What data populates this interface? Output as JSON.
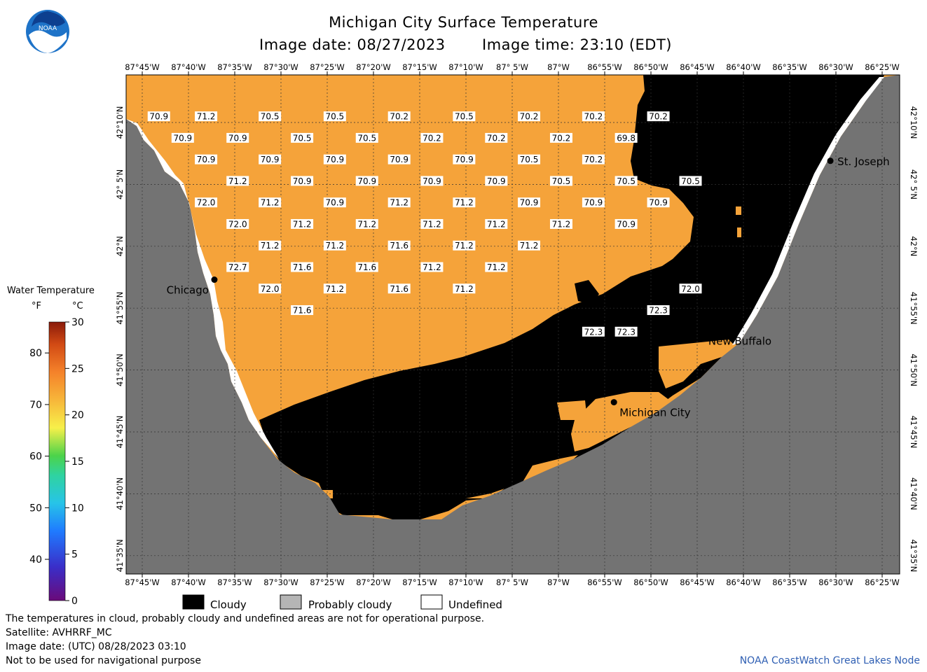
{
  "header": {
    "title": "Michigan City Surface Temperature",
    "image_date": "Image date: 08/27/2023",
    "image_time": "Image time: 23:10 (EDT)",
    "logo_text": "NOAA"
  },
  "axes": {
    "lon_labels": [
      "87°45'W",
      "87°40'W",
      "87°35'W",
      "87°30'W",
      "87°25'W",
      "87°20'W",
      "87°15'W",
      "87°10'W",
      "87° 5'W",
      "87°W",
      "86°55'W",
      "86°50'W",
      "86°45'W",
      "86°40'W",
      "86°35'W",
      "86°30'W",
      "86°25'W"
    ],
    "lat_labels": [
      "42°10'N",
      "42° 5'N",
      "42°N",
      "41°55'N",
      "41°50'N",
      "41°45'N",
      "41°40'N",
      "41°35'N"
    ]
  },
  "temperatures": [
    {
      "v": "70.9",
      "lon": -87.72,
      "lat": 42.175
    },
    {
      "v": "71.2",
      "lon": -87.635,
      "lat": 42.175
    },
    {
      "v": "70.5",
      "lon": -87.52,
      "lat": 42.175
    },
    {
      "v": "70.5",
      "lon": -87.403,
      "lat": 42.175
    },
    {
      "v": "70.2",
      "lon": -87.287,
      "lat": 42.175
    },
    {
      "v": "70.5",
      "lon": -87.17,
      "lat": 42.175
    },
    {
      "v": "70.2",
      "lon": -87.053,
      "lat": 42.175
    },
    {
      "v": "70.2",
      "lon": -86.937,
      "lat": 42.175
    },
    {
      "v": "70.2",
      "lon": -86.82,
      "lat": 42.175
    },
    {
      "v": "70.9",
      "lon": -87.677,
      "lat": 42.146
    },
    {
      "v": "70.9",
      "lon": -87.578,
      "lat": 42.146
    },
    {
      "v": "70.5",
      "lon": -87.462,
      "lat": 42.146
    },
    {
      "v": "70.5",
      "lon": -87.345,
      "lat": 42.146
    },
    {
      "v": "70.2",
      "lon": -87.228,
      "lat": 42.146
    },
    {
      "v": "70.2",
      "lon": -87.112,
      "lat": 42.146
    },
    {
      "v": "70.2",
      "lon": -86.995,
      "lat": 42.146
    },
    {
      "v": "69.8",
      "lon": -86.878,
      "lat": 42.146
    },
    {
      "v": "70.9",
      "lon": -87.635,
      "lat": 42.117
    },
    {
      "v": "70.9",
      "lon": -87.52,
      "lat": 42.117
    },
    {
      "v": "70.9",
      "lon": -87.403,
      "lat": 42.117
    },
    {
      "v": "70.9",
      "lon": -87.287,
      "lat": 42.117
    },
    {
      "v": "70.9",
      "lon": -87.17,
      "lat": 42.117
    },
    {
      "v": "70.5",
      "lon": -87.053,
      "lat": 42.117
    },
    {
      "v": "70.2",
      "lon": -86.937,
      "lat": 42.117
    },
    {
      "v": "71.2",
      "lon": -87.578,
      "lat": 42.088
    },
    {
      "v": "70.9",
      "lon": -87.462,
      "lat": 42.088
    },
    {
      "v": "70.9",
      "lon": -87.345,
      "lat": 42.088
    },
    {
      "v": "70.9",
      "lon": -87.228,
      "lat": 42.088
    },
    {
      "v": "70.9",
      "lon": -87.112,
      "lat": 42.088
    },
    {
      "v": "70.5",
      "lon": -86.995,
      "lat": 42.088
    },
    {
      "v": "70.5",
      "lon": -86.878,
      "lat": 42.088
    },
    {
      "v": "70.5",
      "lon": -86.762,
      "lat": 42.088
    },
    {
      "v": "72.0",
      "lon": -87.635,
      "lat": 42.059
    },
    {
      "v": "71.2",
      "lon": -87.52,
      "lat": 42.059
    },
    {
      "v": "70.9",
      "lon": -87.403,
      "lat": 42.059
    },
    {
      "v": "71.2",
      "lon": -87.287,
      "lat": 42.059
    },
    {
      "v": "71.2",
      "lon": -87.17,
      "lat": 42.059
    },
    {
      "v": "70.9",
      "lon": -87.053,
      "lat": 42.059
    },
    {
      "v": "70.9",
      "lon": -86.937,
      "lat": 42.059
    },
    {
      "v": "70.9",
      "lon": -86.82,
      "lat": 42.059
    },
    {
      "v": "72.0",
      "lon": -87.578,
      "lat": 42.03
    },
    {
      "v": "71.2",
      "lon": -87.462,
      "lat": 42.03
    },
    {
      "v": "71.2",
      "lon": -87.345,
      "lat": 42.03
    },
    {
      "v": "71.2",
      "lon": -87.228,
      "lat": 42.03
    },
    {
      "v": "71.2",
      "lon": -87.112,
      "lat": 42.03
    },
    {
      "v": "71.2",
      "lon": -86.995,
      "lat": 42.03
    },
    {
      "v": "70.9",
      "lon": -86.878,
      "lat": 42.03
    },
    {
      "v": "71.2",
      "lon": -87.52,
      "lat": 42.001
    },
    {
      "v": "71.2",
      "lon": -87.403,
      "lat": 42.001
    },
    {
      "v": "71.6",
      "lon": -87.287,
      "lat": 42.001
    },
    {
      "v": "71.2",
      "lon": -87.17,
      "lat": 42.001
    },
    {
      "v": "71.2",
      "lon": -87.053,
      "lat": 42.001
    },
    {
      "v": "72.7",
      "lon": -87.578,
      "lat": 41.972
    },
    {
      "v": "71.6",
      "lon": -87.462,
      "lat": 41.972
    },
    {
      "v": "71.6",
      "lon": -87.345,
      "lat": 41.972
    },
    {
      "v": "71.2",
      "lon": -87.228,
      "lat": 41.972
    },
    {
      "v": "71.2",
      "lon": -87.112,
      "lat": 41.972
    },
    {
      "v": "72.0",
      "lon": -87.52,
      "lat": 41.943
    },
    {
      "v": "71.2",
      "lon": -87.403,
      "lat": 41.943
    },
    {
      "v": "71.6",
      "lon": -87.287,
      "lat": 41.943
    },
    {
      "v": "71.2",
      "lon": -87.17,
      "lat": 41.943
    },
    {
      "v": "72.0",
      "lon": -86.762,
      "lat": 41.943
    },
    {
      "v": "71.6",
      "lon": -87.462,
      "lat": 41.914
    },
    {
      "v": "72.3",
      "lon": -86.82,
      "lat": 41.914
    },
    {
      "v": "72.3",
      "lon": -86.937,
      "lat": 41.885
    },
    {
      "v": "72.3",
      "lon": -86.878,
      "lat": 41.885
    }
  ],
  "cities": [
    {
      "name": "Chicago",
      "lon": -87.62,
      "lat": 41.955
    },
    {
      "name": "St. Joseph",
      "lon": -86.51,
      "lat": 42.115
    },
    {
      "name": "New Buffalo",
      "lon": -86.74,
      "lat": 41.886
    },
    {
      "name": "Michigan City",
      "lon": -86.9,
      "lat": 41.79
    }
  ],
  "colorbar": {
    "title": "Water Temperature",
    "unit_f": "°F",
    "unit_c": "°C",
    "f_ticks": [
      "40",
      "50",
      "60",
      "70",
      "80"
    ],
    "c_ticks": [
      "0",
      "5",
      "10",
      "15",
      "20",
      "25",
      "30"
    ]
  },
  "legend": {
    "cloudy": "Cloudy",
    "probably_cloudy": "Probably cloudy",
    "undefined": "Undefined"
  },
  "footer": {
    "line1": "The temperatures in cloud, probably cloudy and undefined areas are not for operational purpose.",
    "line2": "Satellite: AVHRRF_MC",
    "line3": "Image date: (UTC) 08/28/2023  03:10",
    "line4": "Not to be used for navigational purpose",
    "credit": "NOAA CoastWatch Great Lakes Node"
  },
  "colors": {
    "water": "#f5a33a",
    "land": "#737373",
    "cloud": "#000000",
    "undefined": "#ffffff",
    "credit": "#2f5fb3"
  }
}
